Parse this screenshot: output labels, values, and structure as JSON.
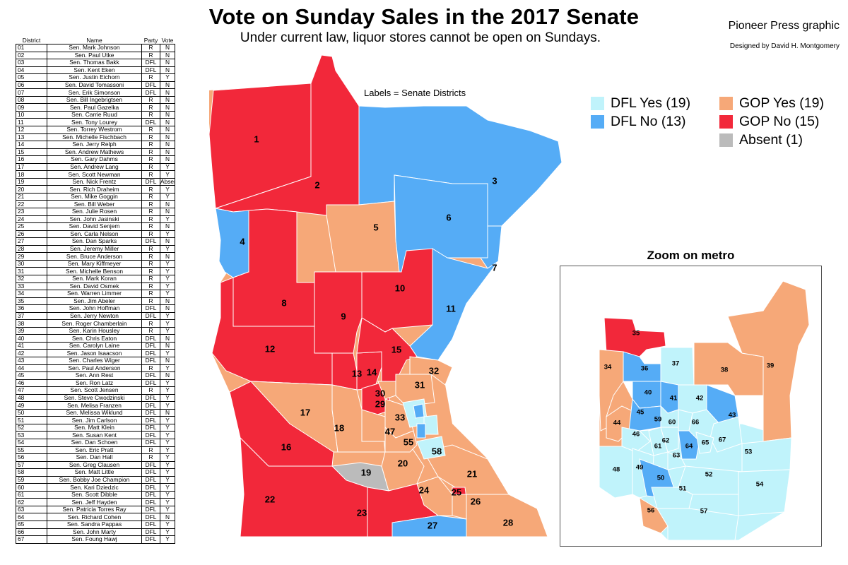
{
  "header": {
    "title": "Vote on Sunday Sales in the 2017 Senate",
    "subtitle": "Under current law, liquor stores cannot be open on Sundays.",
    "credit": "Pioneer Press graphic",
    "designer": "Designed by David H. Montgomery"
  },
  "map": {
    "labels_note": "Labels = Senate Districts",
    "inset_title": "Zoom on metro"
  },
  "legend": [
    {
      "label": "DFL Yes (19)",
      "color": "#c0f3fb"
    },
    {
      "label": "DFL No (13)",
      "color": "#55acf6"
    },
    {
      "label": "GOP Yes (19)",
      "color": "#f6a878"
    },
    {
      "label": "GOP No (15)",
      "color": "#f2283a"
    },
    {
      "label": "Absent (1)",
      "color": "#bbbbbb"
    }
  ],
  "colors": {
    "dfl_yes": "#c0f3fb",
    "dfl_no": "#55acf6",
    "gop_yes": "#f6a878",
    "gop_no": "#f2283a",
    "absent": "#bbbbbb"
  },
  "table": {
    "headers": [
      "District",
      "Name",
      "Party",
      "Vote"
    ],
    "rows": [
      [
        "01",
        "Sen. Mark Johnson",
        "R",
        "N"
      ],
      [
        "02",
        "Sen. Paul Utke",
        "R",
        "N"
      ],
      [
        "03",
        "Sen. Thomas Bakk",
        "DFL",
        "N"
      ],
      [
        "04",
        "Sen. Kent Eken",
        "DFL",
        "N"
      ],
      [
        "05",
        "Sen. Justin Eichorn",
        "R",
        "Y"
      ],
      [
        "06",
        "Sen. David Tomassoni",
        "DFL",
        "N"
      ],
      [
        "07",
        "Sen. Erik Simonson",
        "DFL",
        "N"
      ],
      [
        "08",
        "Sen. Bill Ingebrigtsen",
        "R",
        "N"
      ],
      [
        "09",
        "Sen. Paul Gazelka",
        "R",
        "N"
      ],
      [
        "10",
        "Sen. Carrie Ruud",
        "R",
        "N"
      ],
      [
        "11",
        "Sen. Tony Lourey",
        "DFL",
        "N"
      ],
      [
        "12",
        "Sen. Torrey Westrom",
        "R",
        "N"
      ],
      [
        "13",
        "Sen. Michelle Fischbach",
        "R",
        "N"
      ],
      [
        "14",
        "Sen. Jerry Relph",
        "R",
        "N"
      ],
      [
        "15",
        "Sen. Andrew Mathews",
        "R",
        "N"
      ],
      [
        "16",
        "Sen. Gary Dahms",
        "R",
        "N"
      ],
      [
        "17",
        "Sen. Andrew Lang",
        "R",
        "Y"
      ],
      [
        "18",
        "Sen. Scott Newman",
        "R",
        "Y"
      ],
      [
        "19",
        "Sen. Nick Frentz",
        "DFL",
        "Absent"
      ],
      [
        "20",
        "Sen. Rich Draheim",
        "R",
        "Y"
      ],
      [
        "21",
        "Sen. Mike Goggin",
        "R",
        "Y"
      ],
      [
        "22",
        "Sen. Bill Weber",
        "R",
        "N"
      ],
      [
        "23",
        "Sen. Julie Rosen",
        "R",
        "N"
      ],
      [
        "24",
        "Sen. John Jasinski",
        "R",
        "Y"
      ],
      [
        "25",
        "Sen. David Senjem",
        "R",
        "N"
      ],
      [
        "26",
        "Sen. Carla Nelson",
        "R",
        "Y"
      ],
      [
        "27",
        "Sen. Dan Sparks",
        "DFL",
        "N"
      ],
      [
        "28",
        "Sen. Jeremy Miller",
        "R",
        "Y"
      ],
      [
        "29",
        "Sen. Bruce Anderson",
        "R",
        "N"
      ],
      [
        "30",
        "Sen. Mary Kiffmeyer",
        "R",
        "Y"
      ],
      [
        "31",
        "Sen. Michelle Benson",
        "R",
        "Y"
      ],
      [
        "32",
        "Sen. Mark Koran",
        "R",
        "Y"
      ],
      [
        "33",
        "Sen. David Osmek",
        "R",
        "Y"
      ],
      [
        "34",
        "Sen. Warren Limmer",
        "R",
        "Y"
      ],
      [
        "35",
        "Sen. Jim Abeler",
        "R",
        "N"
      ],
      [
        "36",
        "Sen. John Hoffman",
        "DFL",
        "N"
      ],
      [
        "37",
        "Sen. Jerry Newton",
        "DFL",
        "Y"
      ],
      [
        "38",
        "Sen. Roger Chamberlain",
        "R",
        "Y"
      ],
      [
        "39",
        "Sen. Karin Housley",
        "R",
        "Y"
      ],
      [
        "40",
        "Sen. Chris Eaton",
        "DFL",
        "N"
      ],
      [
        "41",
        "Sen. Carolyn Laine",
        "DFL",
        "N"
      ],
      [
        "42",
        "Sen. Jason Isaacson",
        "DFL",
        "Y"
      ],
      [
        "43",
        "Sen. Charles Wiger",
        "DFL",
        "N"
      ],
      [
        "44",
        "Sen. Paul Anderson",
        "R",
        "Y"
      ],
      [
        "45",
        "Sen. Ann Rest",
        "DFL",
        "N"
      ],
      [
        "46",
        "Sen. Ron Latz",
        "DFL",
        "Y"
      ],
      [
        "47",
        "Sen. Scott Jensen",
        "R",
        "Y"
      ],
      [
        "48",
        "Sen. Steve Cwodzinski",
        "DFL",
        "Y"
      ],
      [
        "49",
        "Sen. Melisa Franzen",
        "DFL",
        "Y"
      ],
      [
        "50",
        "Sen. Melissa Wiklund",
        "DFL",
        "N"
      ],
      [
        "51",
        "Sen. Jim Carlson",
        "DFL",
        "Y"
      ],
      [
        "52",
        "Sen. Matt Klein",
        "DFL",
        "Y"
      ],
      [
        "53",
        "Sen. Susan Kent",
        "DFL",
        "Y"
      ],
      [
        "54",
        "Sen. Dan Schoen",
        "DFL",
        "Y"
      ],
      [
        "55",
        "Sen. Eric Pratt",
        "R",
        "Y"
      ],
      [
        "56",
        "Sen. Dan Hall",
        "R",
        "Y"
      ],
      [
        "57",
        "Sen. Greg Clausen",
        "DFL",
        "Y"
      ],
      [
        "58",
        "Sen. Matt Little",
        "DFL",
        "Y"
      ],
      [
        "59",
        "Sen. Bobby Joe Champion",
        "DFL",
        "Y"
      ],
      [
        "60",
        "Sen. Kari Dziedzic",
        "DFL",
        "Y"
      ],
      [
        "61",
        "Sen. Scott Dibble",
        "DFL",
        "Y"
      ],
      [
        "62",
        "Sen. Jeff Hayden",
        "DFL",
        "Y"
      ],
      [
        "63",
        "Sen. Patricia Torres Ray",
        "DFL",
        "Y"
      ],
      [
        "64",
        "Sen. Richard Cohen",
        "DFL",
        "N"
      ],
      [
        "65",
        "Sen. Sandra Pappas",
        "DFL",
        "Y"
      ],
      [
        "66",
        "Sen. John Marty",
        "DFL",
        "Y"
      ],
      [
        "67",
        "Sen. Foung Hawj",
        "DFL",
        "Y"
      ]
    ]
  },
  "districts_state": [
    {
      "label": "1",
      "status": "gop_no"
    },
    {
      "label": "2",
      "status": "gop_no"
    },
    {
      "label": "3",
      "status": "dfl_no"
    },
    {
      "label": "4",
      "status": "dfl_no"
    },
    {
      "label": "5",
      "status": "gop_yes"
    },
    {
      "label": "6",
      "status": "dfl_no"
    },
    {
      "label": "7",
      "status": "dfl_no"
    },
    {
      "label": "8",
      "status": "gop_no"
    },
    {
      "label": "9",
      "status": "gop_no"
    },
    {
      "label": "10",
      "status": "gop_no"
    },
    {
      "label": "11",
      "status": "dfl_no"
    },
    {
      "label": "12",
      "status": "gop_no"
    },
    {
      "label": "13",
      "status": "gop_no"
    },
    {
      "label": "14",
      "status": "gop_no"
    },
    {
      "label": "15",
      "status": "gop_no"
    },
    {
      "label": "16",
      "status": "gop_no"
    },
    {
      "label": "17",
      "status": "gop_yes"
    },
    {
      "label": "18",
      "status": "gop_yes"
    },
    {
      "label": "19",
      "status": "absent"
    },
    {
      "label": "20",
      "status": "gop_yes"
    },
    {
      "label": "21",
      "status": "gop_yes"
    },
    {
      "label": "22",
      "status": "gop_no"
    },
    {
      "label": "23",
      "status": "gop_no"
    },
    {
      "label": "24",
      "status": "gop_yes"
    },
    {
      "label": "25",
      "status": "gop_no"
    },
    {
      "label": "26",
      "status": "gop_yes"
    },
    {
      "label": "27",
      "status": "dfl_no"
    },
    {
      "label": "28",
      "status": "gop_yes"
    },
    {
      "label": "29",
      "status": "gop_no"
    },
    {
      "label": "30",
      "status": "gop_yes"
    },
    {
      "label": "31",
      "status": "gop_yes"
    },
    {
      "label": "32",
      "status": "gop_yes"
    },
    {
      "label": "33",
      "status": "gop_yes"
    },
    {
      "label": "47",
      "status": "gop_yes"
    },
    {
      "label": "55",
      "status": "gop_yes"
    },
    {
      "label": "58",
      "status": "dfl_yes"
    }
  ],
  "districts_metro": [
    {
      "label": "35",
      "status": "gop_no"
    },
    {
      "label": "34",
      "status": "gop_yes"
    },
    {
      "label": "36",
      "status": "dfl_no"
    },
    {
      "label": "37",
      "status": "dfl_yes"
    },
    {
      "label": "38",
      "status": "gop_yes"
    },
    {
      "label": "39",
      "status": "gop_yes"
    },
    {
      "label": "40",
      "status": "dfl_no"
    },
    {
      "label": "41",
      "status": "dfl_no"
    },
    {
      "label": "42",
      "status": "dfl_yes"
    },
    {
      "label": "43",
      "status": "dfl_no"
    },
    {
      "label": "44",
      "status": "gop_yes"
    },
    {
      "label": "45",
      "status": "dfl_no"
    },
    {
      "label": "46",
      "status": "dfl_yes"
    },
    {
      "label": "59",
      "status": "dfl_yes"
    },
    {
      "label": "60",
      "status": "dfl_yes"
    },
    {
      "label": "66",
      "status": "dfl_yes"
    },
    {
      "label": "67",
      "status": "dfl_yes"
    },
    {
      "label": "61",
      "status": "dfl_yes"
    },
    {
      "label": "62",
      "status": "dfl_yes"
    },
    {
      "label": "64",
      "status": "dfl_no"
    },
    {
      "label": "65",
      "status": "dfl_yes"
    },
    {
      "label": "63",
      "status": "dfl_yes"
    },
    {
      "label": "53",
      "status": "dfl_yes"
    },
    {
      "label": "48",
      "status": "dfl_yes"
    },
    {
      "label": "49",
      "status": "dfl_yes"
    },
    {
      "label": "50",
      "status": "dfl_no"
    },
    {
      "label": "52",
      "status": "dfl_yes"
    },
    {
      "label": "51",
      "status": "dfl_yes"
    },
    {
      "label": "54",
      "status": "dfl_yes"
    },
    {
      "label": "56",
      "status": "gop_yes"
    },
    {
      "label": "57",
      "status": "dfl_yes"
    }
  ]
}
